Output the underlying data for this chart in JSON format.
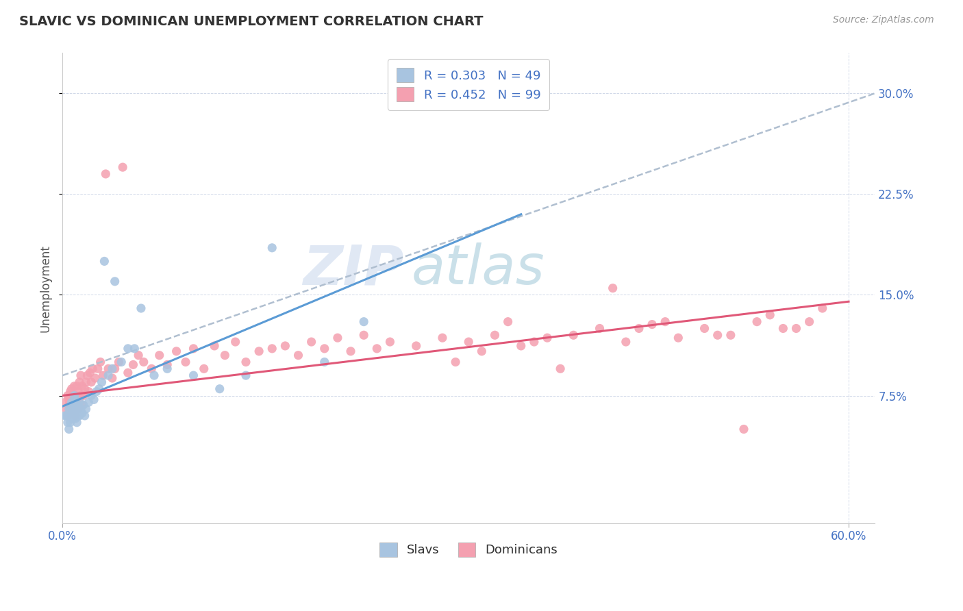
{
  "title": "SLAVIC VS DOMINICAN UNEMPLOYMENT CORRELATION CHART",
  "source": "Source: ZipAtlas.com",
  "ylabel": "Unemployment",
  "xlim": [
    0.0,
    0.62
  ],
  "ylim": [
    -0.02,
    0.33
  ],
  "x_ticks": [
    0.0,
    0.6
  ],
  "x_tick_labels": [
    "0.0%",
    "60.0%"
  ],
  "y_ticks": [
    0.075,
    0.15,
    0.225,
    0.3
  ],
  "y_tick_labels": [
    "7.5%",
    "15.0%",
    "22.5%",
    "30.0%"
  ],
  "slavic_R": 0.303,
  "slavic_N": 49,
  "dominican_R": 0.452,
  "dominican_N": 99,
  "slavic_color": "#a8c4e0",
  "dominican_color": "#f4a0b0",
  "slavic_line_color": "#5b9bd5",
  "dominican_line_color": "#e05878",
  "dashed_line_color": "#b0bfd0",
  "watermark_zip": "ZIP",
  "watermark_atlas": "atlas",
  "legend_slavs": "Slavs",
  "legend_dominicans": "Dominicans",
  "slavic_x": [
    0.002,
    0.003,
    0.004,
    0.005,
    0.005,
    0.006,
    0.006,
    0.007,
    0.007,
    0.008,
    0.008,
    0.009,
    0.009,
    0.01,
    0.01,
    0.01,
    0.011,
    0.011,
    0.012,
    0.012,
    0.013,
    0.013,
    0.014,
    0.015,
    0.016,
    0.017,
    0.018,
    0.02,
    0.022,
    0.024,
    0.026,
    0.028,
    0.03,
    0.032,
    0.035,
    0.038,
    0.04,
    0.045,
    0.05,
    0.055,
    0.06,
    0.07,
    0.08,
    0.1,
    0.12,
    0.14,
    0.16,
    0.2,
    0.23
  ],
  "slavic_y": [
    0.06,
    0.06,
    0.055,
    0.05,
    0.065,
    0.055,
    0.065,
    0.06,
    0.07,
    0.062,
    0.058,
    0.068,
    0.075,
    0.063,
    0.058,
    0.072,
    0.055,
    0.068,
    0.06,
    0.065,
    0.07,
    0.06,
    0.065,
    0.062,
    0.068,
    0.06,
    0.065,
    0.07,
    0.075,
    0.072,
    0.078,
    0.08,
    0.085,
    0.175,
    0.09,
    0.095,
    0.16,
    0.1,
    0.11,
    0.11,
    0.14,
    0.09,
    0.095,
    0.09,
    0.08,
    0.09,
    0.185,
    0.1,
    0.13
  ],
  "dominican_x": [
    0.002,
    0.003,
    0.004,
    0.004,
    0.005,
    0.005,
    0.006,
    0.006,
    0.007,
    0.007,
    0.008,
    0.008,
    0.009,
    0.009,
    0.01,
    0.01,
    0.011,
    0.011,
    0.012,
    0.012,
    0.013,
    0.013,
    0.014,
    0.014,
    0.015,
    0.015,
    0.016,
    0.017,
    0.018,
    0.019,
    0.02,
    0.021,
    0.022,
    0.023,
    0.025,
    0.027,
    0.029,
    0.031,
    0.033,
    0.035,
    0.038,
    0.04,
    0.043,
    0.046,
    0.05,
    0.054,
    0.058,
    0.062,
    0.068,
    0.074,
    0.08,
    0.087,
    0.094,
    0.1,
    0.108,
    0.116,
    0.124,
    0.132,
    0.14,
    0.15,
    0.16,
    0.17,
    0.18,
    0.19,
    0.2,
    0.21,
    0.22,
    0.23,
    0.24,
    0.25,
    0.27,
    0.29,
    0.31,
    0.33,
    0.35,
    0.37,
    0.39,
    0.41,
    0.43,
    0.45,
    0.47,
    0.49,
    0.51,
    0.53,
    0.55,
    0.57,
    0.52,
    0.54,
    0.56,
    0.58,
    0.42,
    0.44,
    0.46,
    0.5,
    0.38,
    0.36,
    0.34,
    0.32,
    0.3
  ],
  "dominican_y": [
    0.07,
    0.065,
    0.06,
    0.075,
    0.068,
    0.072,
    0.065,
    0.078,
    0.07,
    0.08,
    0.065,
    0.075,
    0.068,
    0.082,
    0.06,
    0.075,
    0.07,
    0.082,
    0.065,
    0.078,
    0.07,
    0.085,
    0.075,
    0.09,
    0.068,
    0.082,
    0.075,
    0.08,
    0.085,
    0.09,
    0.078,
    0.092,
    0.085,
    0.095,
    0.088,
    0.095,
    0.1,
    0.09,
    0.24,
    0.095,
    0.088,
    0.095,
    0.1,
    0.245,
    0.092,
    0.098,
    0.105,
    0.1,
    0.095,
    0.105,
    0.098,
    0.108,
    0.1,
    0.11,
    0.095,
    0.112,
    0.105,
    0.115,
    0.1,
    0.108,
    0.11,
    0.112,
    0.105,
    0.115,
    0.11,
    0.118,
    0.108,
    0.12,
    0.11,
    0.115,
    0.112,
    0.118,
    0.115,
    0.12,
    0.112,
    0.118,
    0.12,
    0.125,
    0.115,
    0.128,
    0.118,
    0.125,
    0.12,
    0.13,
    0.125,
    0.13,
    0.05,
    0.135,
    0.125,
    0.14,
    0.155,
    0.125,
    0.13,
    0.12,
    0.095,
    0.115,
    0.13,
    0.108,
    0.1
  ]
}
